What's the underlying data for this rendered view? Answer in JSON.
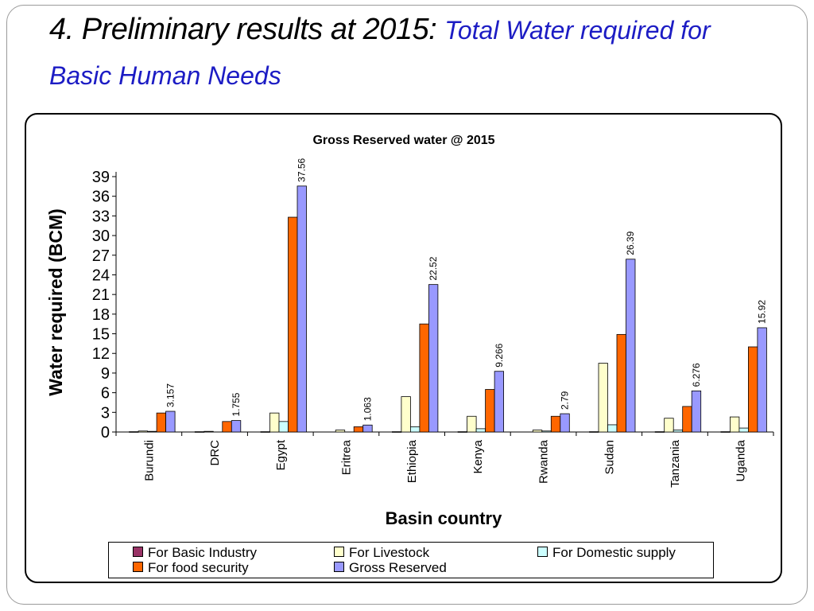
{
  "slide": {
    "title_main": "4. Preliminary results at 2015: ",
    "title_accent": "Total Water required for Basic Human Needs"
  },
  "chart_data": {
    "type": "bar",
    "title": "Gross Reserved water @ 2015",
    "xlabel": "Basin country",
    "ylabel": "Water required (BCM)",
    "ylim": [
      0,
      39
    ],
    "yticks": [
      0,
      3,
      6,
      9,
      12,
      15,
      18,
      21,
      24,
      27,
      30,
      33,
      36,
      39
    ],
    "categories": [
      "Burundi",
      "DRC",
      "Egypt",
      "Eritrea",
      "Ethiopia",
      "Kenya",
      "Rwanda",
      "Sudan",
      "Tanzania",
      "Uganda"
    ],
    "series": [
      {
        "name": "For Basic Industry",
        "color": "#993366",
        "values": [
          0.05,
          0.05,
          0.05,
          0.0,
          0.05,
          0.05,
          0.0,
          0.05,
          0.05,
          0.05
        ]
      },
      {
        "name": "For Livestock",
        "color": "#ffffcc",
        "values": [
          0.15,
          0.1,
          2.9,
          0.3,
          5.4,
          2.4,
          0.3,
          10.5,
          2.1,
          2.3
        ]
      },
      {
        "name": "For Domestic supply",
        "color": "#ccffff",
        "values": [
          0.1,
          0.0,
          1.6,
          0.0,
          0.8,
          0.5,
          0.15,
          1.1,
          0.3,
          0.6
        ]
      },
      {
        "name": "For food security",
        "color": "#ff6600",
        "values": [
          2.9,
          1.6,
          32.8,
          0.8,
          16.5,
          6.5,
          2.4,
          14.9,
          3.9,
          13.0
        ]
      },
      {
        "name": "Gross Reserved",
        "color": "#9999ff",
        "values": [
          3.157,
          1.755,
          37.56,
          1.063,
          22.52,
          9.266,
          2.79,
          26.39,
          6.276,
          15.92
        ]
      }
    ],
    "data_labels": [
      "3.157",
      "1.755",
      "37.56",
      "1.063",
      "22.52",
      "9.266",
      "2.79",
      "26.39",
      "6.276",
      "15.92"
    ],
    "legend": {
      "placement": "bottom",
      "items": [
        "For Basic Industry",
        "For Livestock",
        "For Domestic supply",
        "For food security",
        "Gross Reserved"
      ]
    },
    "grid": false
  }
}
